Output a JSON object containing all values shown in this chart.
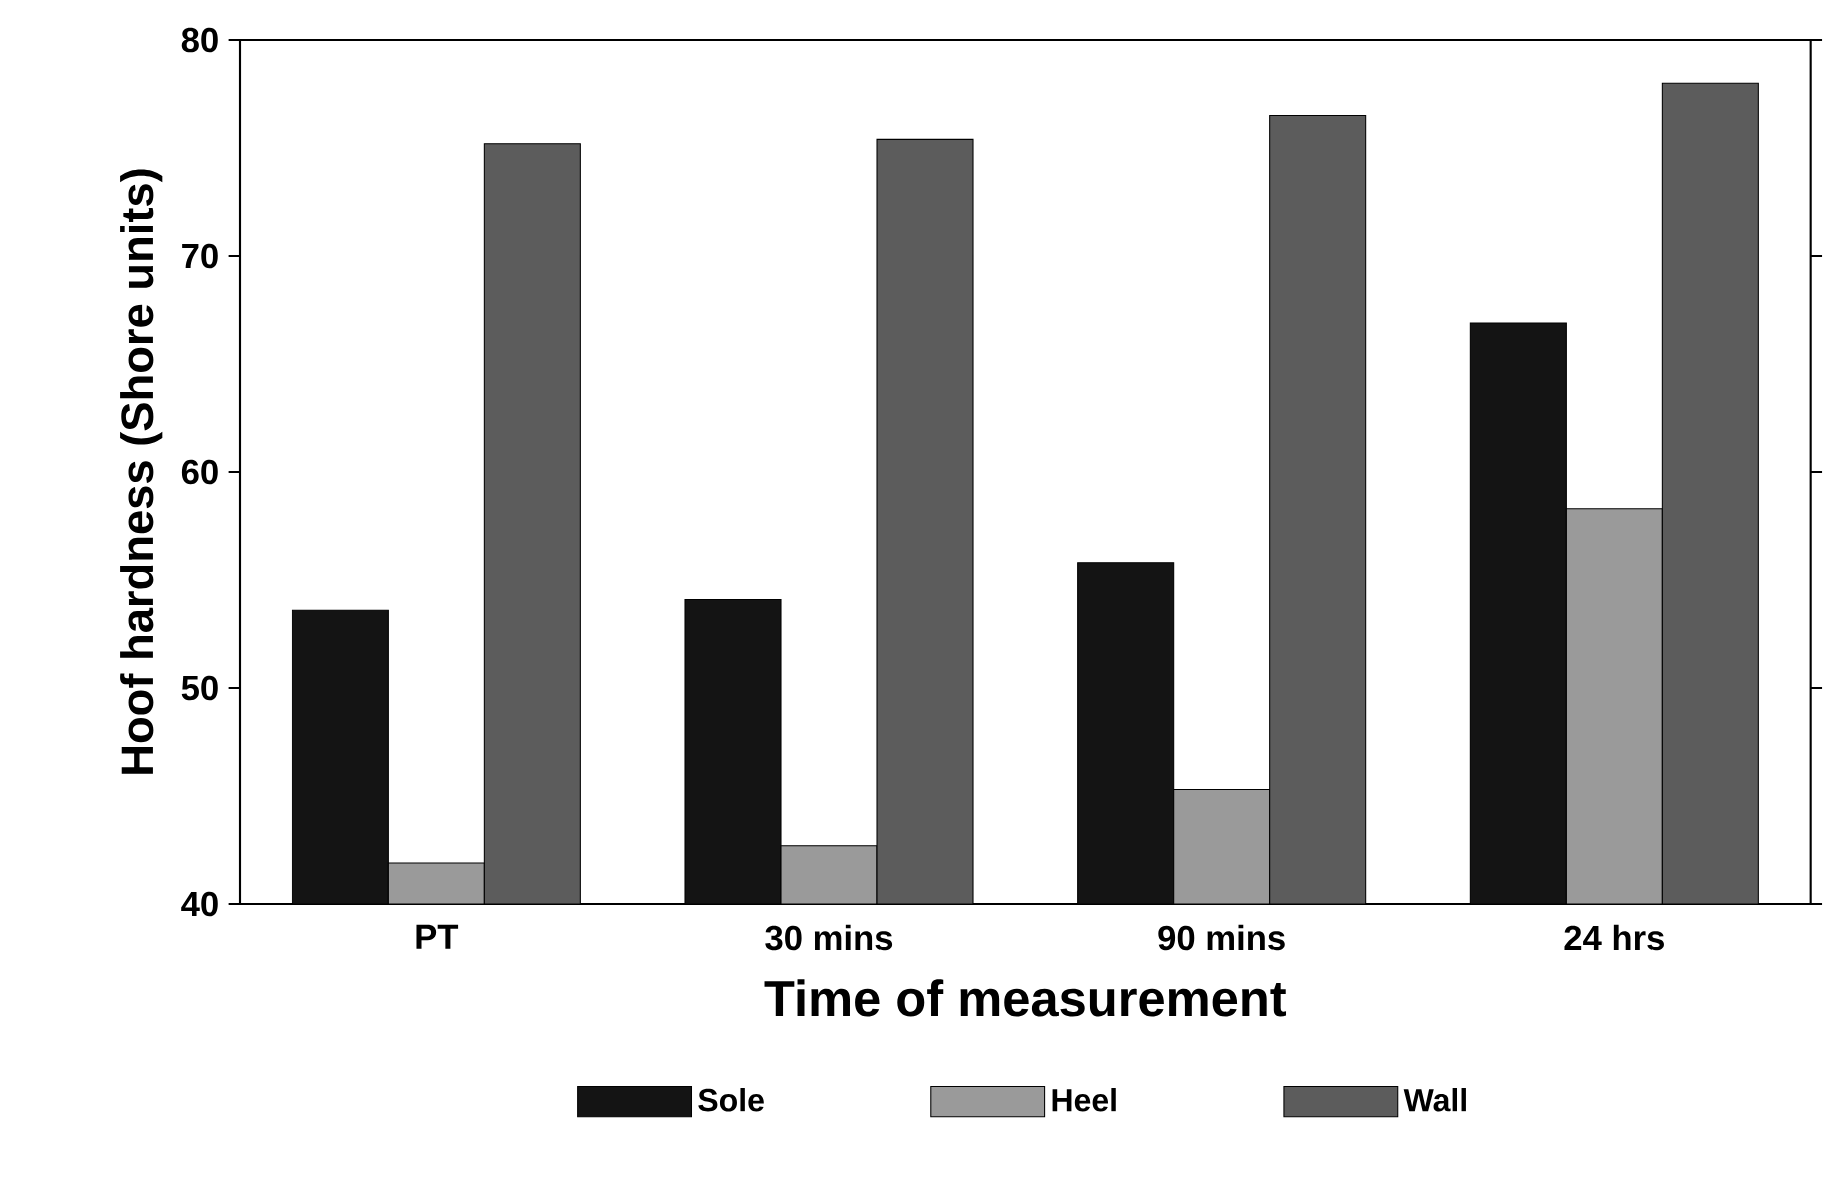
{
  "chart_data": {
    "type": "bar",
    "xlabel": "Time of measurement",
    "ylabel": "Hoof hardness (Shore units)",
    "categories": [
      "PT",
      "30 mins",
      "90 mins",
      "24 hrs"
    ],
    "series": [
      {
        "name": "Sole",
        "color": "#141414",
        "values": [
          53.6,
          54.1,
          55.8,
          66.9
        ]
      },
      {
        "name": "Heel",
        "color": "#9a9a9a",
        "values": [
          41.9,
          42.7,
          45.3,
          58.3
        ]
      },
      {
        "name": "Wall",
        "color": "#5c5c5c",
        "values": [
          75.2,
          75.4,
          76.5,
          78.0
        ]
      }
    ],
    "ylim": [
      40,
      80
    ],
    "yticks": [
      40,
      50,
      60,
      70,
      80
    ],
    "grid": false,
    "legend": "bottom"
  }
}
